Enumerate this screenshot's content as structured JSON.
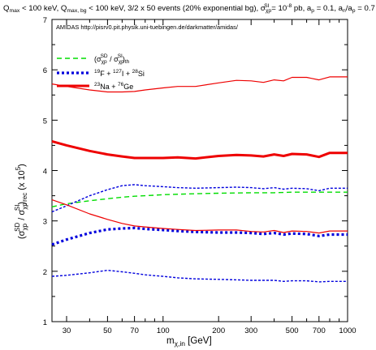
{
  "chart_data": {
    "type": "line",
    "title_parts": {
      "p1": "Q",
      "p1_sub": "max",
      "p2": " < 100 keV, Q",
      "p2_sub": "max, bg",
      "p3": " < 100 keV, 3/2 x 50 events (20% exponential bg), σ",
      "p3_sub": "χp",
      "p3_sup": "SI",
      "p4": " = 10",
      "p4_sup": "-8",
      "p5": " pb, a",
      "p5_sub": "p",
      "p6": " = 0.1, a",
      "p6_sub": "n",
      "p7": "/a",
      "p7_sub": "p",
      "p8": " = 0.7"
    },
    "annotation": "AMIDAS   http://pisrv0.pit.physik.uni-tuebingen.de/darkmatter/amidas/",
    "xlabel_parts": {
      "main": "m",
      "sub": "χ,in",
      "rest": " [GeV]"
    },
    "ylabel_parts": {
      "p1": "(σ",
      "p1_sub": "χp",
      "p1_sup": "SD",
      "p2": " / σ",
      "p2_sub": "χp",
      "p2_sup": "SI",
      "p3": ")",
      "p3_sub": "rec",
      "p4": " (x 10",
      "p4_sup": "5",
      "p5": ")"
    },
    "xscale": "log",
    "xlim": [
      25,
      1000
    ],
    "ylim": [
      1,
      7
    ],
    "xticks": [
      30,
      50,
      70,
      100,
      200,
      300,
      500,
      700,
      1000
    ],
    "xtick_labels": [
      "30",
      "50",
      "70",
      "100",
      "200",
      "300",
      "500",
      "700",
      "1000"
    ],
    "yticks": [
      1,
      2,
      3,
      4,
      5,
      6,
      7
    ],
    "ytick_labels": [
      "1",
      "2",
      "3",
      "4",
      "5",
      "6",
      "7"
    ],
    "legend": {
      "placement": "top-left",
      "entries": [
        {
          "series": "theory",
          "label_parts": {
            "p1": "(σ",
            "p1_sub": "χp",
            "p1_sup": "SD",
            "p2": " / σ",
            "p2_sub": "χp",
            "p2_sup": "SI",
            "p3": ")",
            "p3_sub": "th"
          }
        },
        {
          "series": "fis",
          "label_parts": {
            "p1_sup": "19",
            "p1": "F + ",
            "p2_sup": "127",
            "p2": "I + ",
            "p3_sup": "28",
            "p3": "Si"
          }
        },
        {
          "series": "nage",
          "label_parts": {
            "p1_sup": "23",
            "p1": "Na + ",
            "p2_sup": "76",
            "p2": "Ge"
          }
        }
      ]
    },
    "series": [
      {
        "id": "theory",
        "color": "#00dd00",
        "style": "dashed",
        "width": 1.4,
        "x": [
          25,
          30,
          40,
          50,
          60,
          70,
          80,
          100,
          150,
          200,
          300,
          400,
          500,
          700,
          1000
        ],
        "y": [
          3.28,
          3.34,
          3.4,
          3.44,
          3.47,
          3.49,
          3.5,
          3.52,
          3.54,
          3.55,
          3.56,
          3.56,
          3.57,
          3.57,
          3.57
        ]
      },
      {
        "id": "fis_upper",
        "color": "#0000dd",
        "style": "dotted",
        "width": 1.4,
        "x": [
          25,
          30,
          40,
          50,
          60,
          70,
          80,
          100,
          120,
          150,
          200,
          250,
          300,
          350,
          400,
          450,
          500,
          600,
          700,
          800,
          1000
        ],
        "y": [
          3.18,
          3.3,
          3.5,
          3.62,
          3.7,
          3.72,
          3.7,
          3.68,
          3.66,
          3.65,
          3.66,
          3.67,
          3.66,
          3.64,
          3.66,
          3.63,
          3.65,
          3.64,
          3.6,
          3.65,
          3.65
        ]
      },
      {
        "id": "fis",
        "color": "#0000dd",
        "style": "dotted",
        "width": 3.2,
        "x": [
          25,
          30,
          40,
          50,
          60,
          70,
          80,
          100,
          120,
          150,
          200,
          250,
          300,
          350,
          400,
          450,
          500,
          600,
          700,
          800,
          1000
        ],
        "y": [
          2.53,
          2.63,
          2.76,
          2.83,
          2.85,
          2.86,
          2.84,
          2.82,
          2.8,
          2.78,
          2.77,
          2.77,
          2.76,
          2.74,
          2.76,
          2.73,
          2.75,
          2.74,
          2.7,
          2.73,
          2.73
        ]
      },
      {
        "id": "fis_lower",
        "color": "#0000dd",
        "style": "dotted",
        "width": 1.4,
        "x": [
          25,
          30,
          40,
          50,
          60,
          70,
          80,
          100,
          120,
          150,
          200,
          250,
          300,
          350,
          400,
          450,
          500,
          600,
          700,
          800,
          1000
        ],
        "y": [
          1.9,
          1.92,
          1.97,
          2.02,
          1.99,
          1.96,
          1.93,
          1.9,
          1.87,
          1.85,
          1.84,
          1.83,
          1.82,
          1.82,
          1.82,
          1.8,
          1.81,
          1.81,
          1.79,
          1.8,
          1.8
        ]
      },
      {
        "id": "nage_upper",
        "color": "#ee0000",
        "style": "solid",
        "width": 1.2,
        "x": [
          25,
          30,
          40,
          50,
          60,
          70,
          80,
          100,
          120,
          150,
          200,
          250,
          300,
          350,
          400,
          450,
          500,
          600,
          700,
          800,
          1000
        ],
        "y": [
          5.72,
          5.67,
          5.6,
          5.56,
          5.56,
          5.57,
          5.6,
          5.64,
          5.67,
          5.67,
          5.74,
          5.79,
          5.78,
          5.75,
          5.8,
          5.78,
          5.85,
          5.85,
          5.8,
          5.86,
          5.86
        ]
      },
      {
        "id": "nage",
        "color": "#ee0000",
        "style": "solid",
        "width": 3.0,
        "x": [
          25,
          30,
          40,
          50,
          60,
          70,
          80,
          100,
          120,
          150,
          200,
          250,
          300,
          350,
          400,
          450,
          500,
          600,
          700,
          800,
          1000
        ],
        "y": [
          4.58,
          4.5,
          4.39,
          4.32,
          4.28,
          4.25,
          4.25,
          4.25,
          4.26,
          4.24,
          4.29,
          4.31,
          4.3,
          4.28,
          4.32,
          4.29,
          4.33,
          4.32,
          4.27,
          4.35,
          4.35
        ]
      },
      {
        "id": "nage_lower",
        "color": "#ee0000",
        "style": "solid",
        "width": 1.2,
        "x": [
          25,
          30,
          40,
          50,
          60,
          70,
          80,
          100,
          120,
          150,
          200,
          250,
          300,
          350,
          400,
          450,
          500,
          600,
          700,
          800,
          1000
        ],
        "y": [
          3.42,
          3.32,
          3.14,
          3.03,
          2.95,
          2.9,
          2.88,
          2.85,
          2.83,
          2.81,
          2.82,
          2.82,
          2.79,
          2.78,
          2.81,
          2.77,
          2.8,
          2.79,
          2.76,
          2.8,
          2.8
        ]
      }
    ]
  }
}
